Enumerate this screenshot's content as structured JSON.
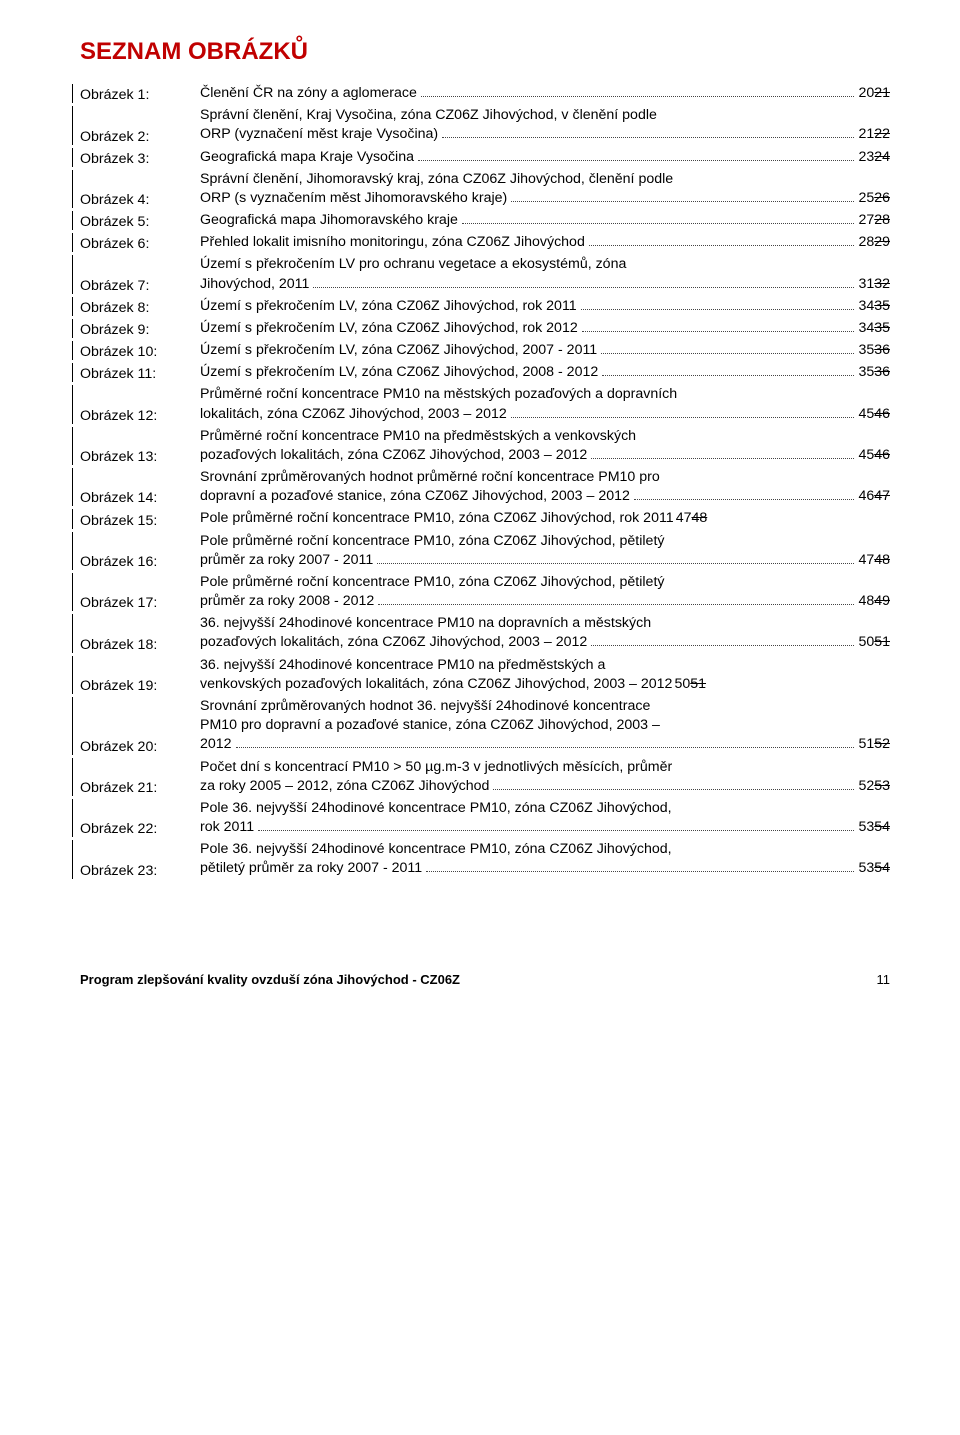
{
  "heading": "SEZNAM OBRÁZKŮ",
  "entries": [
    {
      "label": "Obrázek 1:",
      "lines": [
        "Členění ČR na zóny a aglomerace"
      ],
      "n": "20",
      "s": "21"
    },
    {
      "label": "Obrázek 2:",
      "lines": [
        "Správní členění, Kraj Vysočina, zóna CZ06Z Jihovýchod, v členění podle",
        "ORP (vyznačení měst kraje Vysočina)"
      ],
      "n": "21",
      "s": "22"
    },
    {
      "label": "Obrázek 3:",
      "lines": [
        "Geografická mapa Kraje Vysočina"
      ],
      "n": "23",
      "s": "24"
    },
    {
      "label": "Obrázek 4:",
      "lines": [
        "Správní členění, Jihomoravský kraj, zóna CZ06Z Jihovýchod, členění podle",
        "ORP (s vyznačením měst Jihomoravského kraje)"
      ],
      "n": "25",
      "s": "26"
    },
    {
      "label": "Obrázek 5:",
      "lines": [
        "Geografická mapa Jihomoravského kraje"
      ],
      "n": "27",
      "s": "28"
    },
    {
      "label": "Obrázek 6:",
      "lines": [
        "Přehled lokalit imisního monitoringu, zóna CZ06Z Jihovýchod"
      ],
      "n": "28",
      "s": "29"
    },
    {
      "label": "Obrázek 7:",
      "lines": [
        "Území s překročením LV pro ochranu vegetace a ekosystémů, zóna",
        "Jihovýchod, 2011"
      ],
      "n": "31",
      "s": "32"
    },
    {
      "label": "Obrázek 8:",
      "lines": [
        "Území s překročením LV, zóna CZ06Z Jihovýchod, rok 2011"
      ],
      "n": "34",
      "s": "35"
    },
    {
      "label": "Obrázek 9:",
      "lines": [
        "Území s překročením LV, zóna CZ06Z Jihovýchod, rok 2012"
      ],
      "n": "34",
      "s": "35"
    },
    {
      "label": "Obrázek 10:",
      "lines": [
        "Území s překročením LV, zóna CZ06Z Jihovýchod, 2007 - 2011"
      ],
      "n": "35",
      "s": "36"
    },
    {
      "label": "Obrázek 11:",
      "lines": [
        "Území s překročením LV, zóna CZ06Z Jihovýchod, 2008 - 2012"
      ],
      "n": "35",
      "s": "36"
    },
    {
      "label": "Obrázek 12:",
      "lines": [
        "Průměrné roční koncentrace PM10 na městských pozaďových a dopravních",
        "lokalitách, zóna CZ06Z Jihovýchod, 2003 – 2012"
      ],
      "n": "45",
      "s": "46"
    },
    {
      "label": "Obrázek 13:",
      "lines": [
        "Průměrné roční koncentrace PM10 na předměstských a venkovských",
        "pozaďových lokalitách, zóna CZ06Z Jihovýchod, 2003 – 2012"
      ],
      "n": "45",
      "s": "46"
    },
    {
      "label": "Obrázek 14:",
      "lines": [
        "Srovnání zprůměrovaných hodnot průměrné roční koncentrace PM10 pro",
        "dopravní a pozaďové stanice, zóna CZ06Z Jihovýchod, 2003 – 2012"
      ],
      "n": "46",
      "s": "47"
    },
    {
      "label": "Obrázek 15:",
      "lines": [
        "Pole průměrné roční koncentrace PM10, zóna CZ06Z Jihovýchod, rok 2011"
      ],
      "n": "47",
      "s": "48",
      "nodots": true
    },
    {
      "label": "Obrázek 16:",
      "lines": [
        "Pole průměrné roční koncentrace PM10, zóna CZ06Z Jihovýchod, pětiletý",
        "průměr za roky 2007 - 2011"
      ],
      "n": "47",
      "s": "48"
    },
    {
      "label": "Obrázek 17:",
      "lines": [
        "Pole průměrné roční koncentrace PM10, zóna CZ06Z Jihovýchod, pětiletý",
        "průměr za roky 2008 - 2012"
      ],
      "n": "48",
      "s": "49"
    },
    {
      "label": "Obrázek 18:",
      "lines": [
        "36. nejvyšší 24hodinové koncentrace PM10 na dopravních a městských",
        "pozaďových lokalitách, zóna CZ06Z Jihovýchod, 2003 – 2012"
      ],
      "n": "50",
      "s": "51"
    },
    {
      "label": "Obrázek 19:",
      "lines": [
        "36. nejvyšší 24hodinové koncentrace PM10 na předměstských a",
        "venkovských pozaďových lokalitách, zóna CZ06Z Jihovýchod, 2003 – 2012"
      ],
      "n": "50",
      "s": "51",
      "nodots": true
    },
    {
      "label": "Obrázek 20:",
      "lines": [
        "Srovnání zprůměrovaných hodnot 36. nejvyšší 24hodinové koncentrace",
        "PM10 pro dopravní a pozaďové stanice, zóna CZ06Z Jihovýchod, 2003 –",
        "2012"
      ],
      "n": "51",
      "s": "52"
    },
    {
      "label": "Obrázek 21:",
      "lines": [
        "Počet dní s koncentrací PM10 > 50 µg.m-3 v jednotlivých měsících, průměr",
        "za roky 2005 – 2012, zóna CZ06Z Jihovýchod"
      ],
      "n": "52",
      "s": "53"
    },
    {
      "label": "Obrázek 22:",
      "lines": [
        "Pole 36. nejvyšší 24hodinové koncentrace PM10, zóna CZ06Z Jihovýchod,",
        "rok 2011"
      ],
      "n": "53",
      "s": "54"
    },
    {
      "label": "Obrázek 23:",
      "lines": [
        "Pole 36. nejvyšší 24hodinové koncentrace PM10, zóna CZ06Z Jihovýchod,",
        "pětiletý průměr za roky 2007 - 2011"
      ],
      "n": "53",
      "s": "54"
    }
  ],
  "footer_title": "Program zlepšování kvality ovzduší zóna Jihovýchod - CZ06Z",
  "footer_page": "11"
}
